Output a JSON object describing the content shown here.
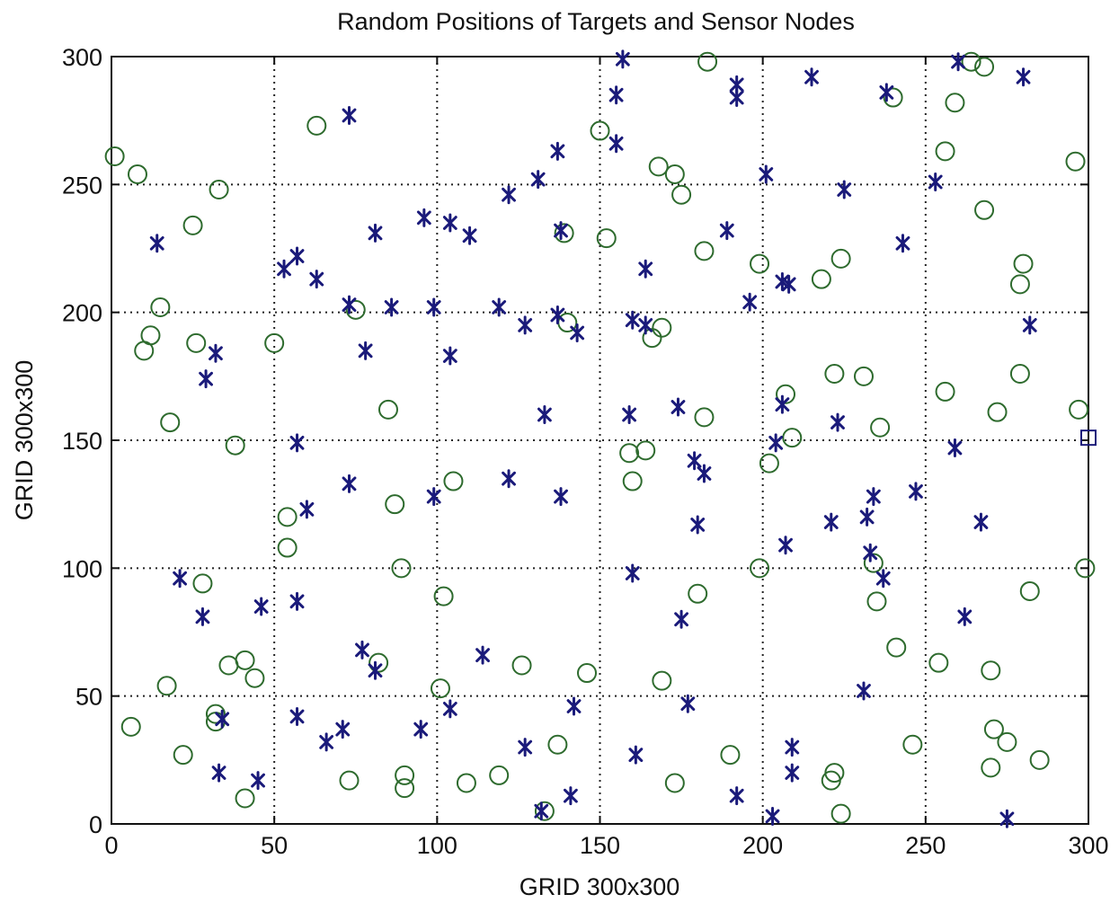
{
  "chart_data": {
    "type": "scatter",
    "title": "Random Positions of Targets and Sensor Nodes",
    "xlabel": "GRID 300x300",
    "ylabel": "GRID 300x300",
    "xlim": [
      0,
      300
    ],
    "ylim": [
      0,
      300
    ],
    "xticks": [
      0,
      50,
      100,
      150,
      200,
      250,
      300
    ],
    "yticks": [
      0,
      50,
      100,
      150,
      200,
      250,
      300
    ],
    "grid": true,
    "legend": "none",
    "series": [
      {
        "marker": "circle",
        "color": "#2e6b2e",
        "points": [
          [
            1,
            261
          ],
          [
            8,
            254
          ],
          [
            25,
            234
          ],
          [
            33,
            248
          ],
          [
            63,
            273
          ],
          [
            15,
            202
          ],
          [
            12,
            191
          ],
          [
            10,
            185
          ],
          [
            26,
            188
          ],
          [
            18,
            157
          ],
          [
            38,
            148
          ],
          [
            50,
            188
          ],
          [
            75,
            201
          ],
          [
            85,
            162
          ],
          [
            87,
            125
          ],
          [
            89,
            100
          ],
          [
            54,
            120
          ],
          [
            54,
            108
          ],
          [
            28,
            94
          ],
          [
            17,
            54
          ],
          [
            6,
            38
          ],
          [
            22,
            27
          ],
          [
            32,
            43
          ],
          [
            32,
            40
          ],
          [
            36,
            62
          ],
          [
            41,
            64
          ],
          [
            44,
            57
          ],
          [
            41,
            10
          ],
          [
            73,
            17
          ],
          [
            82,
            63
          ],
          [
            90,
            19
          ],
          [
            90,
            14
          ],
          [
            102,
            89
          ],
          [
            105,
            134
          ],
          [
            101,
            53
          ],
          [
            109,
            16
          ],
          [
            119,
            19
          ],
          [
            126,
            62
          ],
          [
            133,
            5
          ],
          [
            137,
            31
          ],
          [
            146,
            59
          ],
          [
            150,
            271
          ],
          [
            152,
            229
          ],
          [
            139,
            231
          ],
          [
            140,
            196
          ],
          [
            159,
            145
          ],
          [
            160,
            134
          ],
          [
            164,
            146
          ],
          [
            166,
            190
          ],
          [
            169,
            194
          ],
          [
            168,
            257
          ],
          [
            173,
            254
          ],
          [
            175,
            246
          ],
          [
            183,
            298
          ],
          [
            182,
            224
          ],
          [
            182,
            159
          ],
          [
            180,
            90
          ],
          [
            169,
            56
          ],
          [
            173,
            16
          ],
          [
            190,
            27
          ],
          [
            199,
            219
          ],
          [
            199,
            100
          ],
          [
            202,
            141
          ],
          [
            207,
            168
          ],
          [
            209,
            151
          ],
          [
            218,
            213
          ],
          [
            222,
            176
          ],
          [
            224,
            221
          ],
          [
            231,
            175
          ],
          [
            224,
            4
          ],
          [
            221,
            17
          ],
          [
            222,
            20
          ],
          [
            234,
            102
          ],
          [
            235,
            87
          ],
          [
            236,
            155
          ],
          [
            241,
            69
          ],
          [
            240,
            284
          ],
          [
            246,
            31
          ],
          [
            254,
            63
          ],
          [
            256,
            263
          ],
          [
            256,
            169
          ],
          [
            259,
            282
          ],
          [
            264,
            298
          ],
          [
            268,
            296
          ],
          [
            268,
            240
          ],
          [
            270,
            60
          ],
          [
            271,
            37
          ],
          [
            270,
            22
          ],
          [
            275,
            32
          ],
          [
            272,
            161
          ],
          [
            279,
            211
          ],
          [
            279,
            176
          ],
          [
            280,
            219
          ],
          [
            282,
            91
          ],
          [
            285,
            25
          ],
          [
            296,
            259
          ],
          [
            297,
            162
          ],
          [
            299,
            100
          ]
        ]
      },
      {
        "marker": "star",
        "color": "#1a1a7a",
        "points": [
          [
            14,
            227
          ],
          [
            29,
            174
          ],
          [
            32,
            184
          ],
          [
            21,
            96
          ],
          [
            28,
            81
          ],
          [
            33,
            20
          ],
          [
            34,
            41
          ],
          [
            46,
            85
          ],
          [
            45,
            17
          ],
          [
            53,
            217
          ],
          [
            57,
            222
          ],
          [
            63,
            213
          ],
          [
            57,
            149
          ],
          [
            60,
            123
          ],
          [
            57,
            87
          ],
          [
            57,
            42
          ],
          [
            73,
            277
          ],
          [
            73,
            203
          ],
          [
            78,
            185
          ],
          [
            81,
            231
          ],
          [
            86,
            202
          ],
          [
            73,
            133
          ],
          [
            77,
            68
          ],
          [
            81,
            60
          ],
          [
            71,
            37
          ],
          [
            66,
            32
          ],
          [
            96,
            237
          ],
          [
            99,
            202
          ],
          [
            104,
            235
          ],
          [
            110,
            230
          ],
          [
            104,
            183
          ],
          [
            99,
            128
          ],
          [
            95,
            37
          ],
          [
            104,
            45
          ],
          [
            119,
            202
          ],
          [
            122,
            246
          ],
          [
            122,
            135
          ],
          [
            114,
            66
          ],
          [
            127,
            195
          ],
          [
            131,
            252
          ],
          [
            133,
            160
          ],
          [
            127,
            30
          ],
          [
            137,
            263
          ],
          [
            138,
            232
          ],
          [
            137,
            199
          ],
          [
            143,
            192
          ],
          [
            138,
            128
          ],
          [
            142,
            46
          ],
          [
            141,
            11
          ],
          [
            132,
            5
          ],
          [
            155,
            285
          ],
          [
            157,
            299
          ],
          [
            155,
            266
          ],
          [
            159,
            160
          ],
          [
            160,
            197
          ],
          [
            160,
            98
          ],
          [
            164,
            217
          ],
          [
            164,
            195
          ],
          [
            161,
            27
          ],
          [
            174,
            163
          ],
          [
            175,
            80
          ],
          [
            177,
            47
          ],
          [
            179,
            142
          ],
          [
            180,
            117
          ],
          [
            182,
            137
          ],
          [
            189,
            232
          ],
          [
            192,
            289
          ],
          [
            192,
            284
          ],
          [
            196,
            204
          ],
          [
            192,
            11
          ],
          [
            201,
            254
          ],
          [
            204,
            149
          ],
          [
            206,
            164
          ],
          [
            207,
            109
          ],
          [
            208,
            211
          ],
          [
            206,
            212
          ],
          [
            209,
            30
          ],
          [
            209,
            20
          ],
          [
            203,
            3
          ],
          [
            215,
            292
          ],
          [
            225,
            248
          ],
          [
            223,
            157
          ],
          [
            221,
            118
          ],
          [
            232,
            120
          ],
          [
            233,
            106
          ],
          [
            231,
            52
          ],
          [
            234,
            128
          ],
          [
            237,
            96
          ],
          [
            238,
            286
          ],
          [
            243,
            227
          ],
          [
            247,
            130
          ],
          [
            253,
            251
          ],
          [
            259,
            147
          ],
          [
            262,
            81
          ],
          [
            260,
            298
          ],
          [
            267,
            118
          ],
          [
            280,
            292
          ],
          [
            282,
            195
          ],
          [
            275,
            2
          ]
        ]
      },
      {
        "marker": "square",
        "color": "#1a1a7a",
        "points": [
          [
            300,
            151
          ]
        ]
      }
    ]
  }
}
